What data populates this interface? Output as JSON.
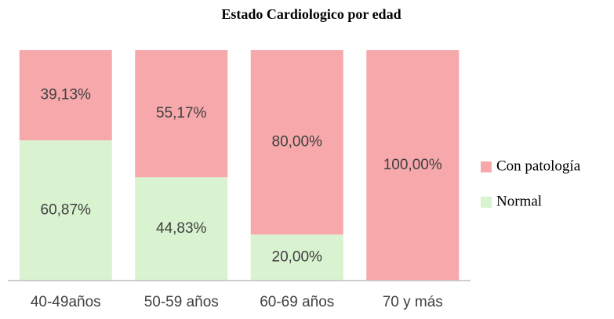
{
  "chart_data": {
    "type": "stacked_bar",
    "title": "Estado Cardiologico por edad",
    "categories": [
      "40-49años",
      "50-59 años",
      "60-69 años",
      "70 y más"
    ],
    "series": [
      {
        "name": "Normal",
        "color": "#d9f2d0",
        "values": [
          60.87,
          44.83,
          20,
          0
        ],
        "value_labels": [
          "60,87%",
          "44,83%",
          "20,00%",
          null
        ]
      },
      {
        "name": "Con patología",
        "color": "#f7a8ab",
        "values": [
          39.13,
          55.17,
          80,
          100
        ],
        "value_labels": [
          "39,13%",
          "55,17%",
          "80,00%",
          "100,00%"
        ]
      }
    ],
    "ylim": [
      0,
      100
    ],
    "legend": "right"
  }
}
